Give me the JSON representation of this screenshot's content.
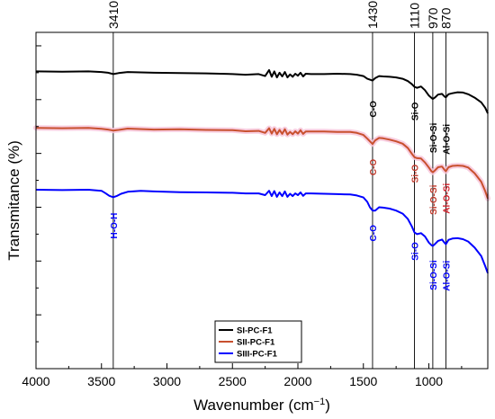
{
  "chart_data": {
    "type": "line",
    "title": "",
    "xlabel": "Wavenumber (cm",
    "xlabel_sup": "−1",
    "xlabel_close": ")",
    "ylabel": "Transmitance (%)",
    "xlim": [
      4000,
      550
    ],
    "x_reversed": true,
    "ylim": [
      0,
      100
    ],
    "y_ticks_labeled": false,
    "x_ticks": [
      4000,
      3500,
      3000,
      2500,
      2000,
      1500,
      1000
    ],
    "x_tick_labels": [
      "4000",
      "3500",
      "3000",
      "2500",
      "2000",
      "1500",
      "1000"
    ],
    "grid": false,
    "legend": {
      "placement": "bottom-center"
    },
    "reference_lines": [
      {
        "x": 3410,
        "label": "3410"
      },
      {
        "x": 1430,
        "label": "1430"
      },
      {
        "x": 1110,
        "label": "1110"
      },
      {
        "x": 970,
        "label": "970"
      },
      {
        "x": 870,
        "label": "870"
      }
    ],
    "series": [
      {
        "name": "SI-PC-F1",
        "color": "#000000",
        "glow": null,
        "x": [
          4000,
          3800,
          3600,
          3500,
          3450,
          3410,
          3370,
          3300,
          3100,
          2900,
          2700,
          2500,
          2400,
          2300,
          2250,
          2220,
          2200,
          2180,
          2160,
          2140,
          2120,
          2100,
          2080,
          2060,
          2040,
          2020,
          2000,
          1980,
          1960,
          1940,
          1900,
          1800,
          1700,
          1600,
          1550,
          1500,
          1470,
          1440,
          1430,
          1410,
          1380,
          1350,
          1300,
          1250,
          1200,
          1160,
          1130,
          1110,
          1090,
          1060,
          1030,
          1000,
          980,
          970,
          955,
          930,
          900,
          880,
          870,
          850,
          820,
          780,
          740,
          700,
          650,
          600,
          570,
          550
        ],
        "y": [
          88.4,
          88.3,
          88.4,
          88.2,
          88.0,
          87.6,
          87.9,
          88.2,
          88.0,
          87.9,
          87.8,
          87.6,
          87.4,
          87.6,
          87.0,
          88.8,
          86.8,
          88.4,
          86.6,
          88.0,
          86.9,
          88.2,
          86.6,
          87.5,
          86.8,
          87.7,
          87.1,
          88.0,
          86.9,
          87.7,
          87.6,
          87.6,
          87.7,
          87.6,
          87.4,
          87.0,
          86.2,
          85.8,
          85.7,
          86.4,
          87.0,
          86.9,
          86.8,
          86.6,
          86.2,
          85.5,
          84.6,
          83.8,
          83.5,
          83.9,
          82.8,
          81.2,
          80.5,
          80.2,
          80.6,
          81.5,
          81.7,
          80.9,
          80.7,
          81.6,
          81.9,
          82.2,
          82.1,
          81.6,
          80.6,
          79.2,
          77.6,
          75.9
        ]
      },
      {
        "name": "SII-PC-F1",
        "color": "#c8502e",
        "glow": "#f7c6da",
        "x": [
          4000,
          3800,
          3600,
          3500,
          3450,
          3410,
          3370,
          3300,
          3100,
          2900,
          2700,
          2500,
          2400,
          2300,
          2250,
          2220,
          2200,
          2180,
          2160,
          2140,
          2120,
          2100,
          2080,
          2060,
          2040,
          2020,
          2000,
          1980,
          1960,
          1940,
          1900,
          1800,
          1700,
          1600,
          1550,
          1500,
          1470,
          1440,
          1430,
          1410,
          1380,
          1350,
          1300,
          1250,
          1200,
          1160,
          1130,
          1110,
          1090,
          1060,
          1030,
          1000,
          980,
          970,
          955,
          930,
          900,
          880,
          870,
          850,
          820,
          780,
          740,
          700,
          650,
          600,
          570,
          550
        ],
        "y": [
          71.6,
          71.5,
          71.6,
          71.3,
          71.1,
          70.8,
          71.0,
          71.4,
          71.1,
          71.2,
          71.0,
          70.9,
          70.6,
          70.7,
          70.1,
          71.5,
          69.9,
          71.3,
          69.7,
          71.0,
          69.8,
          71.2,
          69.6,
          70.4,
          69.7,
          70.6,
          69.9,
          70.9,
          69.8,
          70.5,
          70.5,
          70.5,
          70.4,
          70.4,
          70.1,
          69.5,
          68.4,
          67.2,
          66.8,
          67.9,
          68.6,
          68.5,
          68.1,
          67.6,
          66.9,
          65.6,
          63.9,
          62.9,
          62.6,
          62.5,
          61.3,
          59.8,
          58.7,
          58.4,
          58.9,
          59.9,
          60.1,
          59.1,
          58.7,
          59.9,
          60.3,
          60.4,
          60.3,
          59.8,
          58.1,
          55.6,
          52.8,
          50.6
        ]
      },
      {
        "name": "SIII-PC-F1",
        "color": "#0000ff",
        "glow": null,
        "x": [
          4000,
          3800,
          3600,
          3500,
          3470,
          3440,
          3410,
          3380,
          3350,
          3300,
          3200,
          3100,
          2900,
          2700,
          2500,
          2400,
          2300,
          2250,
          2220,
          2200,
          2180,
          2160,
          2140,
          2120,
          2100,
          2080,
          2060,
          2040,
          2020,
          2000,
          1980,
          1960,
          1940,
          1900,
          1800,
          1700,
          1600,
          1550,
          1500,
          1470,
          1450,
          1430,
          1410,
          1380,
          1350,
          1300,
          1250,
          1200,
          1160,
          1130,
          1110,
          1090,
          1060,
          1030,
          1000,
          980,
          970,
          955,
          930,
          900,
          880,
          870,
          850,
          820,
          780,
          740,
          700,
          650,
          600,
          570,
          550
        ],
        "y": [
          53.2,
          53.1,
          53.2,
          52.9,
          52.2,
          51.4,
          51.0,
          51.4,
          52.0,
          52.6,
          52.9,
          52.7,
          52.5,
          52.4,
          52.3,
          52.1,
          52.1,
          51.6,
          52.9,
          51.3,
          52.8,
          51.1,
          52.4,
          51.3,
          52.7,
          51.1,
          52.0,
          51.3,
          52.1,
          51.6,
          52.4,
          51.4,
          52.1,
          52.1,
          52.0,
          51.9,
          51.8,
          51.5,
          50.9,
          49.6,
          48.0,
          47.0,
          47.0,
          48.0,
          47.9,
          47.6,
          47.0,
          46.1,
          44.5,
          42.3,
          40.5,
          40.0,
          40.3,
          39.3,
          37.5,
          36.7,
          36.5,
          37.0,
          38.0,
          38.4,
          37.4,
          37.0,
          38.3,
          38.7,
          38.8,
          38.5,
          37.8,
          36.0,
          33.5,
          30.5,
          28.4
        ]
      }
    ],
    "annotations": [
      {
        "text": "C-O",
        "series": 0,
        "x": 1430,
        "y": 77.2,
        "color": "#000000"
      },
      {
        "text": "Si-O",
        "series": 0,
        "x": 1110,
        "y": 76.5,
        "color": "#000000"
      },
      {
        "text": "Si-O-Si",
        "series": 0,
        "x": 970,
        "y": 68.6,
        "color": "#000000"
      },
      {
        "text": "Al-O-Si",
        "series": 0,
        "x": 870,
        "y": 68.2,
        "color": "#000000"
      },
      {
        "text": "C-O",
        "series": 1,
        "x": 1430,
        "y": 59.9,
        "color": "#c0392b"
      },
      {
        "text": "Si-O",
        "series": 1,
        "x": 1110,
        "y": 58.0,
        "color": "#c0392b"
      },
      {
        "text": "Si-O-Si",
        "series": 1,
        "x": 970,
        "y": 50.2,
        "color": "#c0392b"
      },
      {
        "text": "Al-O-Si",
        "series": 1,
        "x": 870,
        "y": 50.6,
        "color": "#d0202a"
      },
      {
        "text": "H-O-H",
        "series": 2,
        "x": 3410,
        "y": 42.5,
        "color": "#0000ff"
      },
      {
        "text": "C-O",
        "series": 2,
        "x": 1430,
        "y": 40.3,
        "color": "#0000ff"
      },
      {
        "text": "Si-O",
        "series": 2,
        "x": 1110,
        "y": 34.9,
        "color": "#0000ff"
      },
      {
        "text": "Si-O-Si",
        "series": 2,
        "x": 970,
        "y": 27.8,
        "color": "#0000ff"
      },
      {
        "text": "Al-O-Si",
        "series": 2,
        "x": 870,
        "y": 27.6,
        "color": "#0000ff"
      }
    ]
  }
}
